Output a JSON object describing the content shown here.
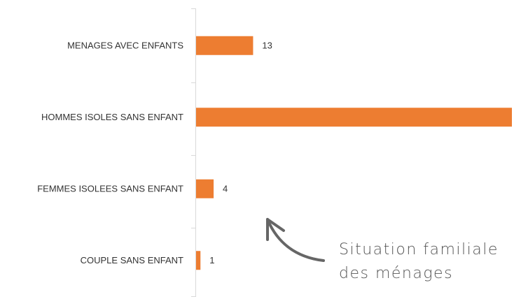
{
  "chart_data": {
    "type": "barh",
    "categories": [
      "MENAGES AVEC ENFANTS",
      "HOMMES ISOLES SANS ENFANT",
      "FEMMES ISOLEES SANS ENFANT",
      "COUPLE SANS ENFANT"
    ],
    "values": [
      13,
      72,
      4,
      1
    ],
    "color": "#ed7d31",
    "annotation": [
      "Situation familiale",
      "des ménages"
    ]
  }
}
